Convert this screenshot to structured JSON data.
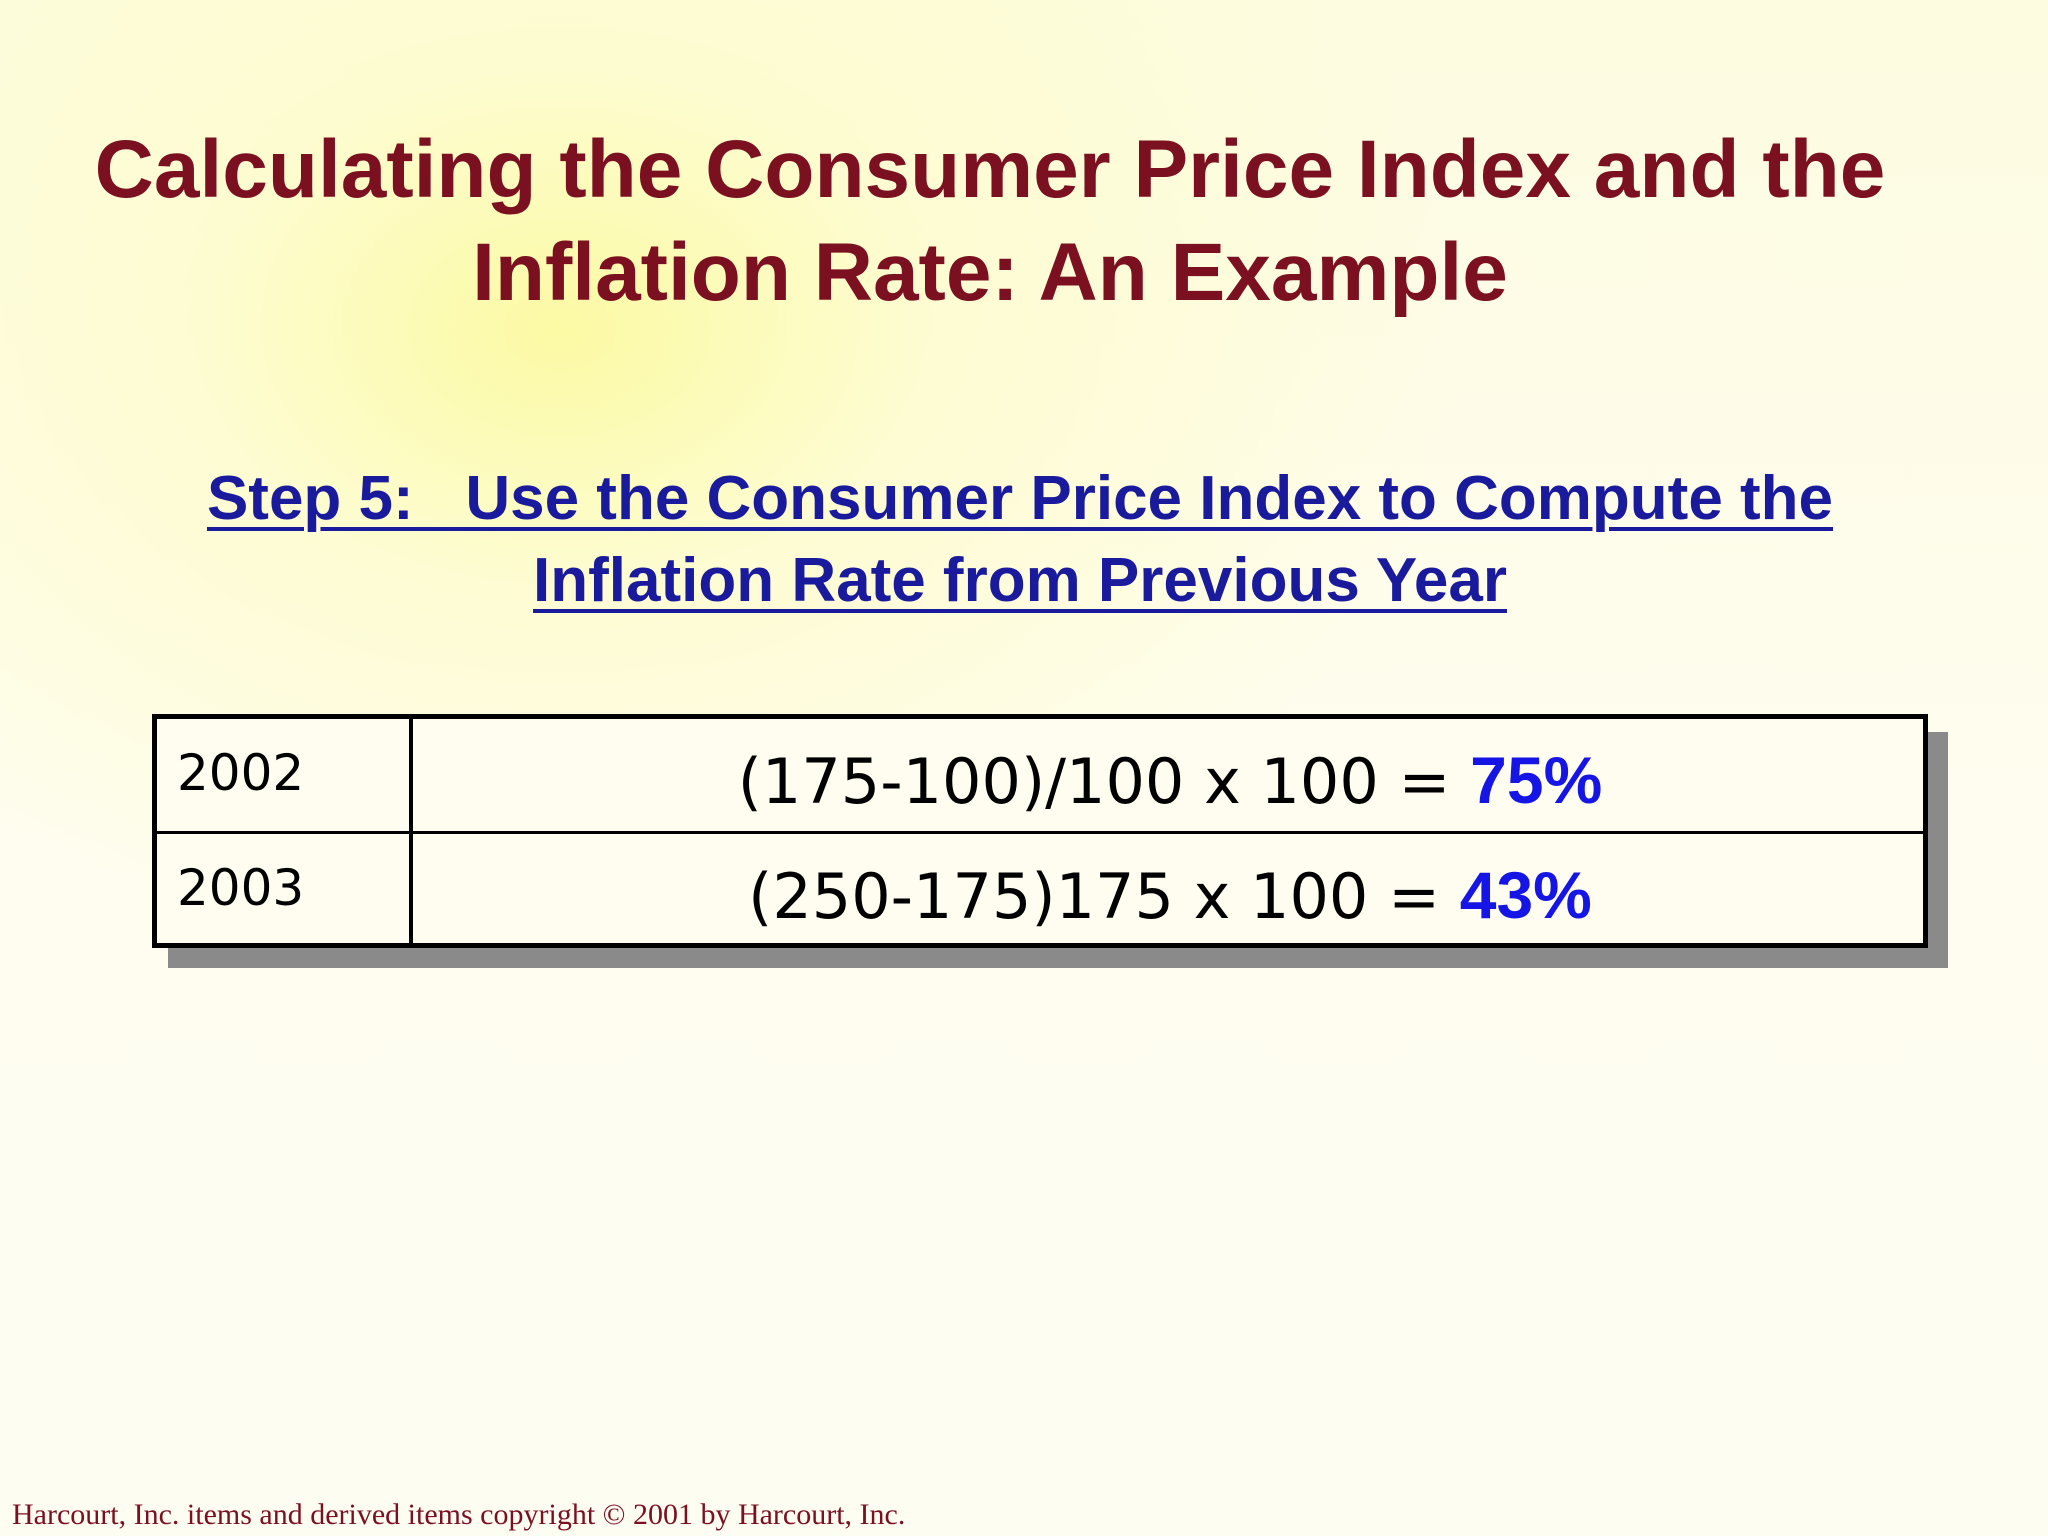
{
  "slide": {
    "title_line1": "Calculating the Consumer Price Index and the",
    "title_line2": "Inflation Rate: An Example",
    "subtitle_line1": "Step 5:   Use the Consumer Price Index to Compute the",
    "subtitle_line2": "Inflation Rate from Previous Year",
    "rows": [
      {
        "year": "2002",
        "formula": "(175-100)/100 x 100 = ",
        "result": "75%"
      },
      {
        "year": "2003",
        "formula": "(250-175)175 x 100 = ",
        "result": "43%"
      }
    ],
    "footer": "Harcourt, Inc. items and derived items copyright © 2001 by Harcourt, Inc."
  },
  "colors": {
    "title": "#7a1020",
    "subtitle": "#1a1a9c",
    "result": "#1515e6",
    "background": "#fefdf0"
  }
}
